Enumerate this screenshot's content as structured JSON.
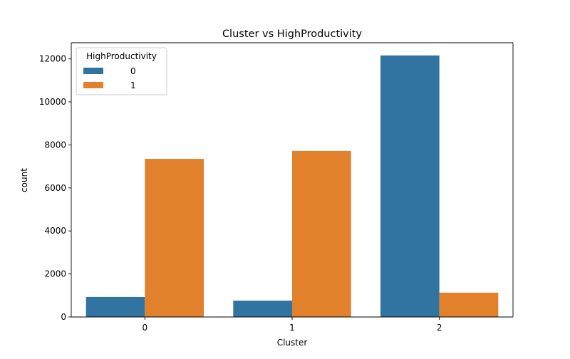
{
  "chart_data": {
    "type": "bar",
    "title": "Cluster vs HighProductivity",
    "xlabel": "Cluster",
    "ylabel": "count",
    "categories": [
      "0",
      "1",
      "2"
    ],
    "yticks": [
      0,
      2000,
      4000,
      6000,
      8000,
      10000,
      12000
    ],
    "ylim": [
      0,
      12750
    ],
    "grid": false,
    "legend": {
      "title": "HighProductivity",
      "placement": "top-left"
    },
    "series": [
      {
        "name": "0",
        "color": "#3274a1",
        "values": [
          930,
          760,
          12160
        ]
      },
      {
        "name": "1",
        "color": "#e1812c",
        "values": [
          7350,
          7720,
          1130
        ]
      }
    ]
  }
}
